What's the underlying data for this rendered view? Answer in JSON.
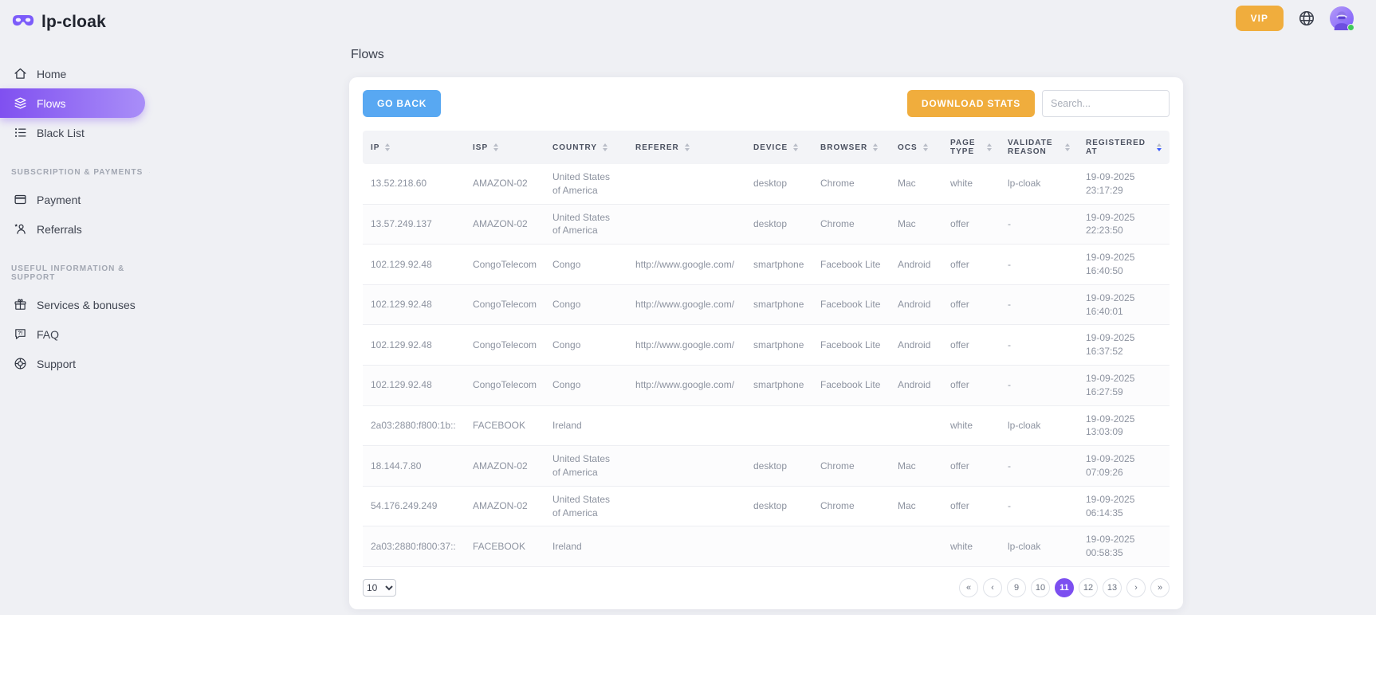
{
  "colors": {
    "page_bg": "#eff0f4",
    "accent": "#7c4ff0",
    "accent_grad_a": "#8050f0",
    "accent_grad_b": "#a98ef8",
    "blue_btn": "#58a8f2",
    "orange": "#f0ad3d",
    "sort_active": "#3b5bfd"
  },
  "sidebar": {
    "logo_text": "lp-cloak",
    "main_nav": [
      {
        "label": "Home",
        "icon": "home"
      },
      {
        "label": "Flows",
        "icon": "flows",
        "active": true
      },
      {
        "label": "Black List",
        "icon": "black-list"
      }
    ],
    "section_subscription": "SUBSCRIPTION & PAYMENTS",
    "payments_nav": [
      {
        "label": "Payment",
        "icon": "payment"
      },
      {
        "label": "Referrals",
        "icon": "referrals"
      }
    ],
    "section_support": "USEFUL INFORMATION & SUPPORT",
    "support_nav": [
      {
        "label": "Services & bonuses",
        "icon": "gift"
      },
      {
        "label": "FAQ",
        "icon": "faq"
      },
      {
        "label": "Support",
        "icon": "support"
      }
    ]
  },
  "topbar": {
    "vip_label": "VIP"
  },
  "page": {
    "title": "Flows"
  },
  "toolbar": {
    "go_back": "GO BACK",
    "download_stats": "DOWNLOAD STATS",
    "search_placeholder": "Search..."
  },
  "table": {
    "columns": [
      "IP",
      "ISP",
      "COUNTRY",
      "REFERER",
      "DEVICE",
      "BROWSER",
      "OCS",
      "PAGE TYPE",
      "VALIDATE REASON",
      "REGISTERED AT"
    ],
    "column_keys": [
      "ip",
      "isp",
      "country",
      "referer",
      "device",
      "browser",
      "ocs",
      "page-type",
      "validate-reason",
      "registered-at"
    ],
    "sorted_column": "REGISTERED AT",
    "sort_direction": "desc",
    "rows": [
      [
        "13.52.218.60",
        "AMAZON-02",
        "United States of America",
        "",
        "desktop",
        "Chrome",
        "Mac",
        "white",
        "lp-cloak",
        "19-09-2025 23:17:29"
      ],
      [
        "13.57.249.137",
        "AMAZON-02",
        "United States of America",
        "",
        "desktop",
        "Chrome",
        "Mac",
        "offer",
        "-",
        "19-09-2025 22:23:50"
      ],
      [
        "102.129.92.48",
        "CongoTelecom",
        "Congo",
        "http://www.google.com/",
        "smartphone",
        "Facebook Lite",
        "Android",
        "offer",
        "-",
        "19-09-2025 16:40:50"
      ],
      [
        "102.129.92.48",
        "CongoTelecom",
        "Congo",
        "http://www.google.com/",
        "smartphone",
        "Facebook Lite",
        "Android",
        "offer",
        "-",
        "19-09-2025 16:40:01"
      ],
      [
        "102.129.92.48",
        "CongoTelecom",
        "Congo",
        "http://www.google.com/",
        "smartphone",
        "Facebook Lite",
        "Android",
        "offer",
        "-",
        "19-09-2025 16:37:52"
      ],
      [
        "102.129.92.48",
        "CongoTelecom",
        "Congo",
        "http://www.google.com/",
        "smartphone",
        "Facebook Lite",
        "Android",
        "offer",
        "-",
        "19-09-2025 16:27:59"
      ],
      [
        "2a03:2880:f800:1b::",
        "FACEBOOK",
        "Ireland",
        "",
        "",
        "",
        "",
        "white",
        "lp-cloak",
        "19-09-2025 13:03:09"
      ],
      [
        "18.144.7.80",
        "AMAZON-02",
        "United States of America",
        "",
        "desktop",
        "Chrome",
        "Mac",
        "offer",
        "-",
        "19-09-2025 07:09:26"
      ],
      [
        "54.176.249.249",
        "AMAZON-02",
        "United States of America",
        "",
        "desktop",
        "Chrome",
        "Mac",
        "offer",
        "-",
        "19-09-2025 06:14:35"
      ],
      [
        "2a03:2880:f800:37::",
        "FACEBOOK",
        "Ireland",
        "",
        "",
        "",
        "",
        "white",
        "lp-cloak",
        "19-09-2025 00:58:35"
      ]
    ]
  },
  "pagination": {
    "page_size": "10",
    "first_label": "«",
    "prev_label": "‹",
    "next_label": "›",
    "last_label": "»",
    "pages": [
      "9",
      "10",
      "11",
      "12",
      "13"
    ],
    "active_page": "11"
  }
}
